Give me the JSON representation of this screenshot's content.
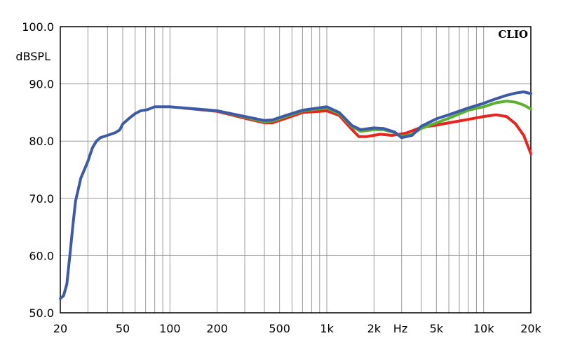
{
  "chart_data": {
    "type": "line",
    "brand": "CLIO",
    "ylabel": "dBSPL",
    "xlabel": "Hz",
    "x_scale": "log",
    "xlim": [
      20,
      20000
    ],
    "ylim": [
      50,
      100
    ],
    "grid": true,
    "y_ticks": [
      {
        "value": 100,
        "label": "100.0"
      },
      {
        "value": 90,
        "label": "90.0"
      },
      {
        "value": 80,
        "label": "80.0"
      },
      {
        "value": 70,
        "label": "70.0"
      },
      {
        "value": 60,
        "label": "60.0"
      },
      {
        "value": 50,
        "label": "50.0"
      }
    ],
    "x_ticks": [
      {
        "value": 20,
        "label": "20"
      },
      {
        "value": 50,
        "label": "50"
      },
      {
        "value": 100,
        "label": "100"
      },
      {
        "value": 200,
        "label": "200"
      },
      {
        "value": 500,
        "label": "500"
      },
      {
        "value": 1000,
        "label": "1k"
      },
      {
        "value": 2000,
        "label": "2k"
      },
      {
        "value": 5000,
        "label": "5k"
      },
      {
        "value": 10000,
        "label": "10k"
      },
      {
        "value": 20000,
        "label": "20k"
      }
    ],
    "series": [
      {
        "color": "#e8241e",
        "points": [
          [
            120,
            85.8
          ],
          [
            200,
            85.2
          ],
          [
            300,
            84.0
          ],
          [
            400,
            83.2
          ],
          [
            450,
            83.2
          ],
          [
            550,
            84.0
          ],
          [
            700,
            85.0
          ],
          [
            1000,
            85.3
          ],
          [
            1200,
            84.5
          ],
          [
            1450,
            82.0
          ],
          [
            1600,
            80.8
          ],
          [
            1800,
            80.8
          ],
          [
            2200,
            81.2
          ],
          [
            2600,
            81.0
          ],
          [
            3200,
            81.4
          ],
          [
            4000,
            82.4
          ],
          [
            5000,
            82.8
          ],
          [
            6000,
            83.2
          ],
          [
            8000,
            83.8
          ],
          [
            10000,
            84.3
          ],
          [
            12000,
            84.6
          ],
          [
            14000,
            84.3
          ],
          [
            16000,
            83.0
          ],
          [
            18000,
            81.0
          ],
          [
            20000,
            77.8
          ]
        ]
      },
      {
        "color": "#5ab030",
        "points": [
          [
            120,
            85.8
          ],
          [
            200,
            85.3
          ],
          [
            300,
            84.2
          ],
          [
            400,
            83.4
          ],
          [
            450,
            83.5
          ],
          [
            550,
            84.3
          ],
          [
            700,
            85.3
          ],
          [
            1000,
            85.8
          ],
          [
            1200,
            84.8
          ],
          [
            1450,
            82.5
          ],
          [
            1650,
            81.7
          ],
          [
            2000,
            82.0
          ],
          [
            2300,
            82.0
          ],
          [
            2700,
            81.5
          ],
          [
            3000,
            80.8
          ],
          [
            3500,
            81.2
          ],
          [
            4000,
            82.2
          ],
          [
            5000,
            83.2
          ],
          [
            6000,
            84.0
          ],
          [
            8000,
            85.4
          ],
          [
            10000,
            86.0
          ],
          [
            12000,
            86.7
          ],
          [
            14000,
            87.0
          ],
          [
            16000,
            86.8
          ],
          [
            18000,
            86.3
          ],
          [
            20000,
            85.6
          ]
        ]
      },
      {
        "color": "#3d5aa8",
        "points": [
          [
            20,
            52.5
          ],
          [
            21,
            53.0
          ],
          [
            22,
            55.0
          ],
          [
            23,
            60.0
          ],
          [
            24,
            65.0
          ],
          [
            25,
            69.5
          ],
          [
            27,
            73.5
          ],
          [
            30,
            76.5
          ],
          [
            32,
            78.8
          ],
          [
            34,
            80.0
          ],
          [
            36,
            80.6
          ],
          [
            40,
            81.0
          ],
          [
            45,
            81.5
          ],
          [
            48,
            82.0
          ],
          [
            50,
            83.0
          ],
          [
            55,
            84.0
          ],
          [
            60,
            84.8
          ],
          [
            65,
            85.3
          ],
          [
            72,
            85.5
          ],
          [
            80,
            86.0
          ],
          [
            90,
            86.0
          ],
          [
            100,
            86.0
          ],
          [
            110,
            85.9
          ],
          [
            150,
            85.6
          ],
          [
            200,
            85.3
          ],
          [
            300,
            84.3
          ],
          [
            400,
            83.6
          ],
          [
            450,
            83.7
          ],
          [
            550,
            84.5
          ],
          [
            700,
            85.4
          ],
          [
            1000,
            86.0
          ],
          [
            1200,
            85.0
          ],
          [
            1450,
            82.7
          ],
          [
            1650,
            82.0
          ],
          [
            2000,
            82.3
          ],
          [
            2300,
            82.2
          ],
          [
            2700,
            81.6
          ],
          [
            3000,
            80.6
          ],
          [
            3500,
            81.0
          ],
          [
            4000,
            82.6
          ],
          [
            5000,
            83.9
          ],
          [
            6000,
            84.6
          ],
          [
            8000,
            85.8
          ],
          [
            10000,
            86.6
          ],
          [
            12000,
            87.4
          ],
          [
            14000,
            88.0
          ],
          [
            16000,
            88.4
          ],
          [
            18000,
            88.6
          ],
          [
            20000,
            88.3
          ]
        ]
      }
    ]
  }
}
